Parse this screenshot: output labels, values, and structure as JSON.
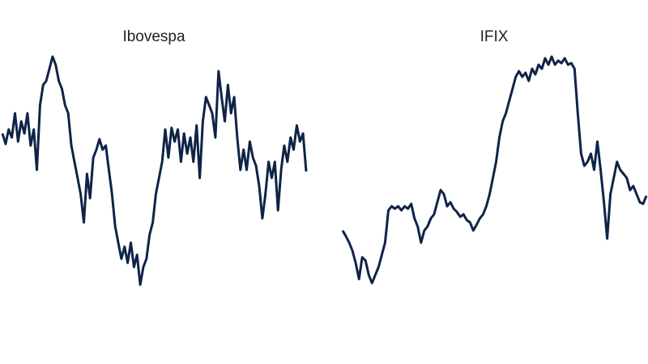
{
  "chart_data": [
    {
      "type": "line",
      "title": "Ibovespa",
      "color": "#0f2347",
      "ylim": [
        0,
        400
      ],
      "values": [
        235,
        222,
        240,
        230,
        260,
        225,
        250,
        235,
        260,
        220,
        240,
        190,
        270,
        295,
        300,
        315,
        330,
        320,
        300,
        290,
        270,
        260,
        220,
        200,
        180,
        160,
        125,
        185,
        155,
        205,
        215,
        228,
        215,
        220,
        190,
        160,
        120,
        100,
        80,
        95,
        75,
        100,
        70,
        85,
        48,
        70,
        80,
        110,
        125,
        160,
        180,
        200,
        240,
        205,
        242,
        225,
        240,
        200,
        235,
        210,
        230,
        200,
        245,
        180,
        250,
        280,
        270,
        260,
        230,
        312,
        280,
        250,
        295,
        260,
        280,
        230,
        190,
        215,
        190,
        225,
        205,
        195,
        170,
        130,
        160,
        200,
        180,
        200,
        140,
        190,
        220,
        200,
        230,
        215,
        245,
        225,
        235,
        188
      ]
    },
    {
      "type": "line",
      "title": "IFIX",
      "color": "#0f2347",
      "ylim": [
        0,
        400
      ],
      "values": [
        115,
        108,
        100,
        90,
        75,
        55,
        82,
        78,
        60,
        50,
        60,
        70,
        85,
        100,
        140,
        145,
        142,
        145,
        140,
        145,
        142,
        148,
        130,
        120,
        100,
        115,
        120,
        130,
        135,
        150,
        165,
        160,
        145,
        150,
        142,
        138,
        132,
        135,
        128,
        125,
        115,
        122,
        130,
        135,
        145,
        160,
        180,
        200,
        230,
        250,
        260,
        275,
        290,
        305,
        312,
        305,
        310,
        300,
        315,
        308,
        320,
        315,
        328,
        320,
        330,
        320,
        325,
        322,
        328,
        320,
        322,
        315,
        260,
        210,
        195,
        200,
        210,
        190,
        225,
        190,
        150,
        105,
        160,
        180,
        200,
        190,
        185,
        180,
        165,
        170,
        160,
        150,
        148,
        158
      ]
    }
  ]
}
